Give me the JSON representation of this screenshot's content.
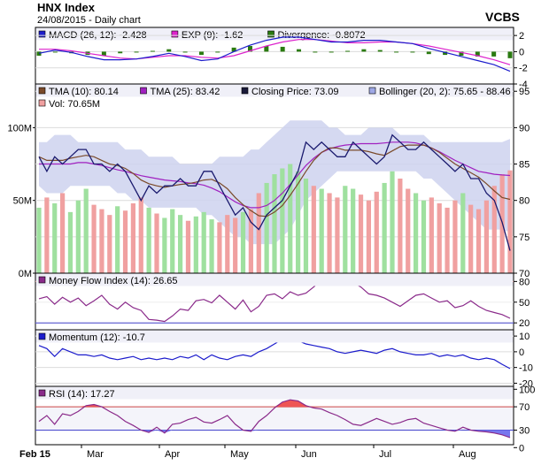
{
  "header": {
    "title": "HNX Index",
    "subtitle": "24/08/2015 - Daily chart",
    "brand": "VCBS"
  },
  "colors": {
    "panel_bg": "#f0f0f8",
    "band_fill": "#ced2ee",
    "price": "#1a1a6e",
    "tma10": "#7a4a2a",
    "tma25": "#a020c0",
    "macd": "#1c1ccc",
    "exp": "#dd22cc",
    "divergence": "#2a7a10",
    "vol_up": "#9fe09f",
    "vol_down": "#f0a0a0",
    "mfi": "#8a2a8a",
    "momentum": "#1c1ccc",
    "rsi": "#8a2a8a",
    "over": "#ee5555",
    "under": "#7777ee",
    "ref_line": "#cc4444",
    "ref_line2": "#4444cc"
  },
  "legends": {
    "macd": [
      {
        "label": "MACD (26, 12): -2.428",
        "color": "#1c1ccc"
      },
      {
        "label": "EXP (9): -1.62",
        "color": "#dd22cc"
      },
      {
        "label": "Divergence: -0.8072",
        "color": "#2a7a10"
      }
    ],
    "price": [
      {
        "label": "TMA (10): 80.14",
        "color": "#7a4a2a"
      },
      {
        "label": "TMA (25): 83.42",
        "color": "#a020c0"
      },
      {
        "label": "Closing Price: 73.09",
        "color": "#1a1a3a"
      },
      {
        "label": "Bollinger (20, 2): 75.65 - 88.46",
        "color": "#9fa8e6"
      }
    ],
    "vol": [
      {
        "label": "Vol: 70.65M",
        "color": "#f0a0a0"
      }
    ],
    "mfi": [
      {
        "label": "Money Flow Index (14): 26.65",
        "color": "#8a2a8a"
      }
    ],
    "momentum": [
      {
        "label": "Momentum (12): -10.7",
        "color": "#1c1ccc"
      }
    ],
    "rsi": [
      {
        "label": "RSI (14): 17.27",
        "color": "#8a2a8a"
      }
    ]
  },
  "chart_data": [
    {
      "type": "line",
      "panel": "macd",
      "ylim": [
        -4,
        3
      ],
      "yticks": [
        "2",
        "0",
        "-2",
        "-4"
      ],
      "grid": true,
      "series": [
        {
          "name": "MACD (26, 12)",
          "values": [
            -0.2,
            0.2,
            -0.1,
            -0.6,
            -1.0,
            -1.0,
            -0.9,
            -0.6,
            -0.2,
            -0.6,
            -1.1,
            -0.9,
            0.0,
            0.8,
            1.4,
            1.8,
            1.8,
            1.5,
            1.2,
            1.2,
            1.4,
            1.4,
            1.2,
            1.0,
            0.4,
            -0.1,
            -0.6,
            -1.1,
            -1.6,
            -2.43
          ]
        },
        {
          "name": "EXP (9)",
          "values": [
            0.3,
            0.3,
            0.1,
            -0.2,
            -0.5,
            -0.8,
            -0.9,
            -0.7,
            -0.5,
            -0.5,
            -0.7,
            -0.8,
            -0.5,
            0.1,
            0.7,
            1.2,
            1.5,
            1.5,
            1.3,
            1.1,
            1.1,
            1.2,
            1.2,
            1.0,
            0.7,
            0.3,
            -0.1,
            -0.5,
            -1.0,
            -1.62
          ]
        },
        {
          "name": "Divergence",
          "values": [
            -0.5,
            -0.1,
            -0.2,
            -0.4,
            -0.5,
            -0.2,
            0.0,
            0.1,
            0.3,
            -0.1,
            -0.4,
            -0.1,
            0.5,
            0.7,
            0.7,
            0.6,
            0.3,
            0.0,
            -0.1,
            0.1,
            0.3,
            0.2,
            0.0,
            0.0,
            -0.3,
            -0.4,
            -0.5,
            -0.6,
            -0.6,
            -0.81
          ]
        }
      ]
    },
    {
      "type": "line",
      "panel": "price",
      "ylim": [
        70,
        96
      ],
      "yticks": [
        "95",
        "90",
        "85",
        "80",
        "75",
        "70"
      ],
      "grid": true,
      "series": [
        {
          "name": "Closing Price",
          "values": [
            86,
            84,
            86,
            85,
            86,
            87,
            87,
            85,
            85,
            84,
            85,
            84,
            82,
            80,
            82,
            81,
            82,
            82,
            83,
            82,
            82,
            84,
            84,
            82,
            80,
            78,
            79,
            77,
            76,
            78,
            79,
            80,
            82,
            84,
            88,
            87,
            88,
            87,
            86,
            86,
            88,
            87,
            86,
            85,
            86,
            89,
            88,
            87,
            87,
            88,
            87,
            86,
            85,
            84,
            85,
            83,
            83,
            81,
            80,
            77,
            73.09
          ]
        },
        {
          "name": "TMA (10)",
          "values": [
            86,
            85.5,
            85.5,
            85.5,
            85.8,
            86,
            86.2,
            86,
            85.5,
            85,
            84.8,
            84.4,
            83.7,
            82.8,
            82.3,
            82,
            81.8,
            82,
            82.2,
            82.3,
            82.5,
            82.8,
            82.9,
            82.4,
            81.6,
            80.4,
            79.4,
            78.6,
            77.9,
            77.8,
            78.4,
            79.3,
            80.7,
            82.3,
            84,
            85.5,
            86.6,
            87.2,
            87.2,
            86.9,
            86.9,
            86.9,
            86.7,
            86.4,
            86.2,
            86.8,
            87.4,
            87.6,
            87.6,
            87.6,
            87.2,
            86.6,
            85.8,
            85,
            84.4,
            83.8,
            83.2,
            82.3,
            81.3,
            80.4,
            80.14
          ]
        },
        {
          "name": "TMA (25)",
          "values": [
            85,
            85,
            85,
            85,
            85,
            85.2,
            85.2,
            85,
            84.8,
            84.5,
            84.2,
            84,
            83.7,
            83.4,
            83.2,
            83,
            82.8,
            82.7,
            82.6,
            82.4,
            82.3,
            82.1,
            81.7,
            81.2,
            80.5,
            79.8,
            79.3,
            79,
            79,
            79.3,
            80,
            81,
            82.2,
            83.5,
            84.8,
            85.8,
            86.6,
            87.1,
            87.4,
            87.6,
            87.7,
            87.8,
            87.8,
            87.8,
            87.9,
            88,
            88,
            88,
            87.9,
            87.6,
            87.2,
            86.7,
            86.1,
            85.5,
            85,
            84.5,
            84,
            83.8,
            83.6,
            83.5,
            83.42
          ]
        },
        {
          "name": "Bollinger upper",
          "values": [
            88,
            88,
            89,
            89,
            89,
            88,
            88,
            88,
            88,
            88,
            88,
            87,
            87,
            87,
            86,
            86,
            86,
            86,
            85,
            85,
            85,
            85,
            85,
            86,
            86,
            86,
            86,
            87,
            87,
            88,
            89,
            90,
            91,
            91,
            91,
            91,
            91,
            90,
            90,
            89,
            89,
            89,
            90,
            90,
            90,
            90,
            89,
            89,
            89,
            89,
            88,
            88,
            88,
            88,
            88,
            88,
            88,
            88,
            88,
            88,
            88.46
          ]
        },
        {
          "name": "Bollinger lower",
          "values": [
            82,
            81,
            81,
            81,
            82,
            82,
            82,
            82,
            82,
            82,
            81,
            81,
            80,
            80,
            79,
            79,
            79,
            79,
            79,
            79,
            79,
            78,
            78,
            77,
            76,
            75,
            75,
            74,
            74,
            74,
            74,
            75,
            76,
            78,
            80,
            81,
            82,
            83,
            84,
            84,
            84,
            84,
            84,
            84,
            84,
            84,
            84,
            84,
            84,
            83,
            83,
            82,
            81,
            80,
            79,
            78,
            77,
            76,
            76,
            76,
            75.65
          ]
        }
      ]
    },
    {
      "type": "bar",
      "panel": "volume",
      "ylim": [
        0,
        130
      ],
      "yticks": [
        "100M",
        "50M",
        "0M"
      ],
      "series": [
        {
          "name": "Vol",
          "values": [
            45,
            52,
            48,
            55,
            42,
            50,
            58,
            47,
            44,
            40,
            46,
            43,
            48,
            52,
            45,
            41,
            38,
            44,
            40,
            36,
            39,
            42,
            37,
            35,
            40,
            38,
            42,
            44,
            55,
            62,
            68,
            72,
            75,
            70,
            65,
            60,
            58,
            55,
            52,
            60,
            58,
            54,
            50,
            56,
            62,
            70,
            65,
            58,
            55,
            50,
            52,
            48,
            45,
            50,
            55,
            47,
            44,
            50,
            60,
            68,
            70.65
          ]
        }
      ],
      "up": [
        1,
        0,
        1,
        0,
        1,
        1,
        1,
        0,
        0,
        0,
        1,
        0,
        0,
        0,
        1,
        0,
        1,
        1,
        1,
        0,
        1,
        1,
        1,
        0,
        0,
        0,
        1,
        0,
        0,
        1,
        1,
        1,
        1,
        1,
        1,
        0,
        1,
        0,
        0,
        1,
        1,
        0,
        0,
        0,
        1,
        1,
        0,
        0,
        1,
        1,
        0,
        0,
        0,
        0,
        1,
        0,
        0,
        0,
        0,
        0,
        0
      ]
    },
    {
      "type": "line",
      "panel": "mfi",
      "ylim": [
        10,
        92
      ],
      "yticks": [
        "80",
        "50",
        "20"
      ],
      "reference_lines": [
        80,
        20
      ],
      "series": [
        {
          "name": "Money Flow Index (14)",
          "values": [
            55,
            58,
            47,
            57,
            50,
            56,
            45,
            52,
            60,
            47,
            40,
            50,
            42,
            38,
            25,
            24,
            22,
            30,
            40,
            38,
            52,
            54,
            49,
            60,
            50,
            40,
            53,
            36,
            44,
            60,
            62,
            55,
            65,
            60,
            63,
            72,
            82,
            87,
            80,
            82,
            78,
            72,
            62,
            60,
            56,
            50,
            44,
            52,
            60,
            62,
            56,
            50,
            52,
            42,
            45,
            52,
            44,
            38,
            35,
            32,
            26.65
          ]
        }
      ]
    },
    {
      "type": "line",
      "panel": "momentum",
      "ylim": [
        -22,
        14
      ],
      "yticks": [
        "10",
        "0",
        "-10",
        "-20"
      ],
      "series": [
        {
          "name": "Momentum (12)",
          "values": [
            4,
            2,
            -3,
            2,
            0,
            -2,
            -2,
            -3,
            -2,
            -4,
            -5,
            -4,
            -3,
            -5,
            -4,
            -5,
            -4,
            -5,
            -3,
            -4,
            -2,
            -5,
            -2,
            -4,
            -5,
            -3,
            -2,
            -3,
            0,
            2,
            5,
            8,
            8,
            7,
            5,
            4,
            3,
            2,
            0,
            -1,
            0,
            1,
            0,
            -1,
            1,
            2,
            0,
            -1,
            -2,
            -2,
            -1,
            -3,
            -2,
            -3,
            -2,
            -4,
            -5,
            -4,
            -5,
            -8,
            -10.7
          ]
        }
      ]
    },
    {
      "type": "line",
      "panel": "rsi",
      "ylim": [
        5,
        105
      ],
      "yticks": [
        "100",
        "70",
        "30",
        "0"
      ],
      "reference_lines": [
        70,
        30
      ],
      "series": [
        {
          "name": "RSI (14)",
          "values": [
            45,
            55,
            40,
            58,
            55,
            62,
            72,
            74,
            70,
            62,
            55,
            45,
            38,
            30,
            26,
            35,
            25,
            40,
            42,
            48,
            52,
            44,
            42,
            48,
            55,
            40,
            30,
            28,
            45,
            55,
            68,
            78,
            82,
            80,
            72,
            68,
            66,
            60,
            55,
            48,
            40,
            38,
            44,
            50,
            45,
            40,
            43,
            48,
            50,
            42,
            38,
            34,
            30,
            28,
            35,
            30,
            28,
            27,
            25,
            22,
            17.27
          ]
        }
      ]
    }
  ],
  "x_axis": {
    "labels": [
      "Feb 15",
      "Mar",
      "Apr",
      "May",
      "Jun",
      "Jul",
      "Aug"
    ]
  }
}
